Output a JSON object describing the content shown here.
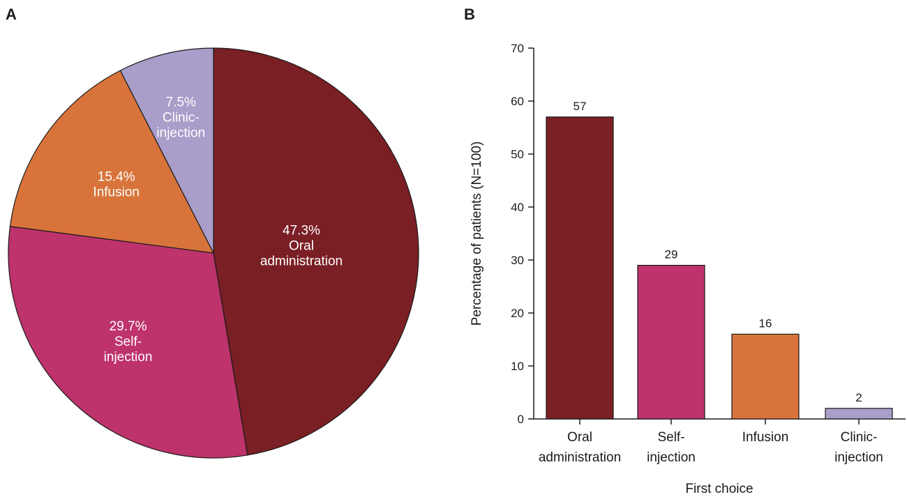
{
  "panels": {
    "a": "A",
    "b": "B"
  },
  "chart_data": [
    {
      "type": "pie",
      "panel": "A",
      "start_angle_deg": 0,
      "direction": "clockwise",
      "slices": [
        {
          "name": "Oral administration",
          "lines": [
            "47.3%",
            "Oral",
            "administration"
          ],
          "value": 47.3,
          "color": "#7a1f24"
        },
        {
          "name": "Self-injection",
          "lines": [
            "29.7%",
            "Self-",
            "injection"
          ],
          "value": 29.7,
          "color": "#be336c"
        },
        {
          "name": "Infusion",
          "lines": [
            "15.4%",
            "Infusion"
          ],
          "value": 15.4,
          "color": "#d8743b"
        },
        {
          "name": "Clinic-injection",
          "lines": [
            "7.5%",
            "Clinic-",
            "injection"
          ],
          "value": 7.5,
          "color": "#a99dca"
        }
      ]
    },
    {
      "type": "bar",
      "panel": "B",
      "categories": [
        {
          "name": "Oral administration",
          "lines": [
            "Oral",
            "administration"
          ]
        },
        {
          "name": "Self-injection",
          "lines": [
            "Self-",
            "injection"
          ]
        },
        {
          "name": "Infusion",
          "lines": [
            "Infusion"
          ]
        },
        {
          "name": "Clinic-injection",
          "lines": [
            "Clinic-",
            "injection"
          ]
        }
      ],
      "values": [
        57,
        29,
        16,
        2
      ],
      "colors": [
        "#7a1f24",
        "#be336c",
        "#d8743b",
        "#a99dca"
      ],
      "xlabel": "First choice",
      "ylabel": "Percentage of patients (N=100)",
      "ylim": [
        0,
        70
      ],
      "yticks": [
        0,
        10,
        20,
        30,
        40,
        50,
        60,
        70
      ],
      "grid": false
    }
  ]
}
